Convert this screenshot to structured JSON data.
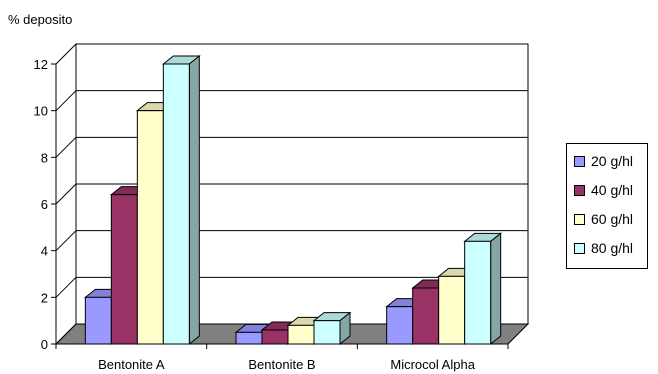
{
  "chart_data": {
    "type": "bar",
    "ylabel": "% deposito",
    "xlabel": "",
    "ylim": [
      0,
      12
    ],
    "y_ticks": [
      "0",
      "2",
      "4",
      "6",
      "8",
      "10",
      "12"
    ],
    "categories": [
      "Bentonite A",
      "Bentonite B",
      "Microcol Alpha"
    ],
    "series": [
      {
        "name": "20 g/hl",
        "values": [
          2.0,
          0.5,
          1.6
        ],
        "color": "#9999ff"
      },
      {
        "name": "40 g/hl",
        "values": [
          6.4,
          0.6,
          2.4
        ],
        "color": "#993366"
      },
      {
        "name": "60 g/hl",
        "values": [
          10.0,
          0.8,
          2.9
        ],
        "color": "#ffffcc"
      },
      {
        "name": "80 g/hl",
        "values": [
          12.0,
          1.0,
          4.4
        ],
        "color": "#ccffff"
      }
    ],
    "grid": true,
    "style": "3d-column",
    "floor_color": "#808080",
    "legend_position": "right"
  }
}
